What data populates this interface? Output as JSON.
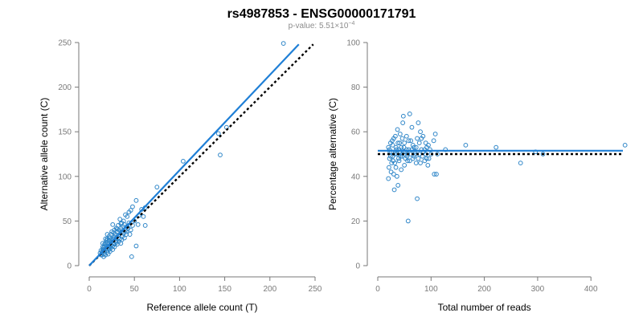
{
  "title": "rs4987853 - ENSG00000171791",
  "subtitle": {
    "prefix": "p-value: 5.51×10",
    "exponent": "−4"
  },
  "colors": {
    "points": "#2f86c8",
    "fit_line": "#1f7fd6",
    "reference_line": "#000000"
  },
  "chart_data": [
    {
      "type": "scatter",
      "xlabel": "Reference allele count (T)",
      "ylabel": "Alternative allele count (C)",
      "xlim": [
        0,
        250
      ],
      "ylim": [
        0,
        250
      ],
      "xticks": [
        0,
        50,
        100,
        150,
        200,
        250
      ],
      "yticks": [
        0,
        50,
        100,
        150,
        200,
        250
      ],
      "fit_line": {
        "x": [
          0,
          232
        ],
        "y": [
          0,
          248
        ]
      },
      "reference_line": {
        "x": [
          0,
          248
        ],
        "y": [
          0,
          248
        ]
      },
      "points": [
        [
          215,
          249
        ],
        [
          104,
          117
        ],
        [
          152,
          155
        ],
        [
          143,
          148
        ],
        [
          145,
          124
        ],
        [
          75,
          88
        ],
        [
          62,
          65
        ],
        [
          58,
          63
        ],
        [
          55,
          56
        ],
        [
          60,
          55
        ],
        [
          52,
          73
        ],
        [
          48,
          66
        ],
        [
          46,
          62
        ],
        [
          44,
          60
        ],
        [
          42,
          55
        ],
        [
          40,
          57
        ],
        [
          38,
          50
        ],
        [
          50,
          50
        ],
        [
          54,
          46
        ],
        [
          62,
          45
        ],
        [
          36,
          48
        ],
        [
          34,
          52
        ],
        [
          32,
          45
        ],
        [
          30,
          42
        ],
        [
          28,
          40
        ],
        [
          26,
          46
        ],
        [
          25,
          38
        ],
        [
          24,
          35
        ],
        [
          22,
          33
        ],
        [
          20,
          30
        ],
        [
          19,
          28
        ],
        [
          18,
          25
        ],
        [
          17,
          22
        ],
        [
          16,
          20
        ],
        [
          15,
          18
        ],
        [
          14,
          15
        ],
        [
          13,
          12
        ],
        [
          12,
          14
        ],
        [
          15,
          25
        ],
        [
          18,
          30
        ],
        [
          20,
          35
        ],
        [
          22,
          28
        ],
        [
          24,
          26
        ],
        [
          26,
          30
        ],
        [
          28,
          32
        ],
        [
          30,
          28
        ],
        [
          32,
          34
        ],
        [
          34,
          30
        ],
        [
          36,
          38
        ],
        [
          38,
          36
        ],
        [
          40,
          40
        ],
        [
          42,
          44
        ],
        [
          44,
          48
        ],
        [
          46,
          40
        ],
        [
          48,
          45
        ],
        [
          18,
          12
        ],
        [
          20,
          15
        ],
        [
          22,
          18
        ],
        [
          24,
          20
        ],
        [
          26,
          22
        ],
        [
          28,
          24
        ],
        [
          30,
          26
        ],
        [
          16,
          10
        ],
        [
          14,
          12
        ],
        [
          20,
          22
        ],
        [
          22,
          24
        ],
        [
          25,
          28
        ],
        [
          27,
          30
        ],
        [
          29,
          35
        ],
        [
          31,
          38
        ],
        [
          33,
          40
        ],
        [
          35,
          42
        ],
        [
          37,
          44
        ],
        [
          39,
          46
        ],
        [
          41,
          38
        ],
        [
          43,
          42
        ],
        [
          21,
          13
        ],
        [
          23,
          16
        ],
        [
          26,
          18
        ],
        [
          35,
          25
        ],
        [
          45,
          35
        ],
        [
          47,
          10
        ],
        [
          52,
          22
        ],
        [
          19,
          17
        ],
        [
          17,
          16
        ],
        [
          23,
          21
        ],
        [
          27,
          25
        ],
        [
          33,
          27
        ],
        [
          37,
          33
        ],
        [
          41,
          35
        ],
        [
          16,
          13
        ],
        [
          18,
          19
        ],
        [
          21,
          20
        ],
        [
          24,
          23
        ],
        [
          29,
          27
        ],
        [
          32,
          31
        ],
        [
          36,
          29
        ],
        [
          15,
          21
        ],
        [
          17,
          24
        ],
        [
          20,
          26
        ],
        [
          23,
          31
        ],
        [
          27,
          37
        ],
        [
          31,
          41
        ],
        [
          35,
          47
        ],
        [
          13,
          17
        ],
        [
          16,
          18
        ],
        [
          19,
          21
        ],
        [
          22,
          19
        ],
        [
          28,
          21
        ],
        [
          31,
          24
        ],
        [
          39,
          31
        ]
      ]
    },
    {
      "type": "scatter",
      "xlabel": "Total number of reads",
      "ylabel": "Percentage alternative (C)",
      "xlim": [
        0,
        460
      ],
      "ylim": [
        0,
        100
      ],
      "xticks": [
        0,
        100,
        200,
        300,
        400
      ],
      "yticks": [
        0,
        20,
        40,
        60,
        80,
        100
      ],
      "fit_line": {
        "x": [
          0,
          460
        ],
        "y": [
          51.5,
          51.5
        ]
      },
      "reference_line": {
        "x": [
          0,
          460
        ],
        "y": [
          50,
          50
        ]
      },
      "points": [
        [
          464,
          54
        ],
        [
          310,
          50
        ],
        [
          296,
          51
        ],
        [
          268,
          46
        ],
        [
          222,
          53
        ],
        [
          165,
          54
        ],
        [
          127,
          52
        ],
        [
          105,
          56
        ],
        [
          108,
          59
        ],
        [
          110,
          41
        ],
        [
          106,
          41
        ],
        [
          112,
          50
        ],
        [
          95,
          54
        ],
        [
          92,
          48
        ],
        [
          90,
          55
        ],
        [
          88,
          52
        ],
        [
          85,
          58
        ],
        [
          82,
          57
        ],
        [
          80,
          60
        ],
        [
          78,
          55
        ],
        [
          76,
          64
        ],
        [
          74,
          30
        ],
        [
          72,
          46
        ],
        [
          70,
          50
        ],
        [
          68,
          53
        ],
        [
          66,
          48
        ],
        [
          64,
          62
        ],
        [
          62,
          56
        ],
        [
          60,
          68
        ],
        [
          58,
          52
        ],
        [
          57,
          20
        ],
        [
          56,
          47
        ],
        [
          55,
          49
        ],
        [
          54,
          58
        ],
        [
          52,
          51
        ],
        [
          50,
          45
        ],
        [
          49,
          53
        ],
        [
          48,
          67
        ],
        [
          47,
          64
        ],
        [
          46,
          57
        ],
        [
          45,
          50
        ],
        [
          44,
          43
        ],
        [
          43,
          49
        ],
        [
          42,
          59
        ],
        [
          41,
          55
        ],
        [
          40,
          52
        ],
        [
          39,
          48
        ],
        [
          38,
          36
        ],
        [
          37,
          61
        ],
        [
          36,
          40
        ],
        [
          35,
          52
        ],
        [
          34,
          44
        ],
        [
          33,
          58
        ],
        [
          32,
          50
        ],
        [
          31,
          34
        ],
        [
          30,
          41
        ],
        [
          29,
          47
        ],
        [
          28,
          54
        ],
        [
          27,
          56
        ],
        [
          26,
          46
        ],
        [
          25,
          42
        ],
        [
          24,
          49
        ],
        [
          23,
          51
        ],
        [
          22,
          52
        ],
        [
          21,
          44
        ],
        [
          20,
          39
        ],
        [
          20,
          53
        ],
        [
          22,
          48
        ],
        [
          24,
          55
        ],
        [
          26,
          51
        ],
        [
          28,
          49
        ],
        [
          30,
          57
        ],
        [
          32,
          46
        ],
        [
          34,
          53
        ],
        [
          36,
          50
        ],
        [
          38,
          55
        ],
        [
          40,
          47
        ],
        [
          42,
          51
        ],
        [
          44,
          53
        ],
        [
          46,
          49
        ],
        [
          48,
          51
        ],
        [
          50,
          55
        ],
        [
          52,
          48
        ],
        [
          54,
          52
        ],
        [
          56,
          50
        ],
        [
          58,
          56
        ],
        [
          60,
          47
        ],
        [
          62,
          50
        ],
        [
          64,
          52
        ],
        [
          66,
          54
        ],
        [
          68,
          49
        ],
        [
          70,
          51
        ],
        [
          72,
          53
        ],
        [
          74,
          57
        ],
        [
          76,
          48
        ],
        [
          78,
          50
        ],
        [
          80,
          46
        ],
        [
          82,
          52
        ],
        [
          84,
          49
        ],
        [
          86,
          51
        ],
        [
          88,
          47
        ],
        [
          90,
          50
        ],
        [
          92,
          53
        ],
        [
          94,
          45
        ],
        [
          96,
          48
        ],
        [
          98,
          52
        ],
        [
          100,
          50
        ]
      ]
    }
  ]
}
